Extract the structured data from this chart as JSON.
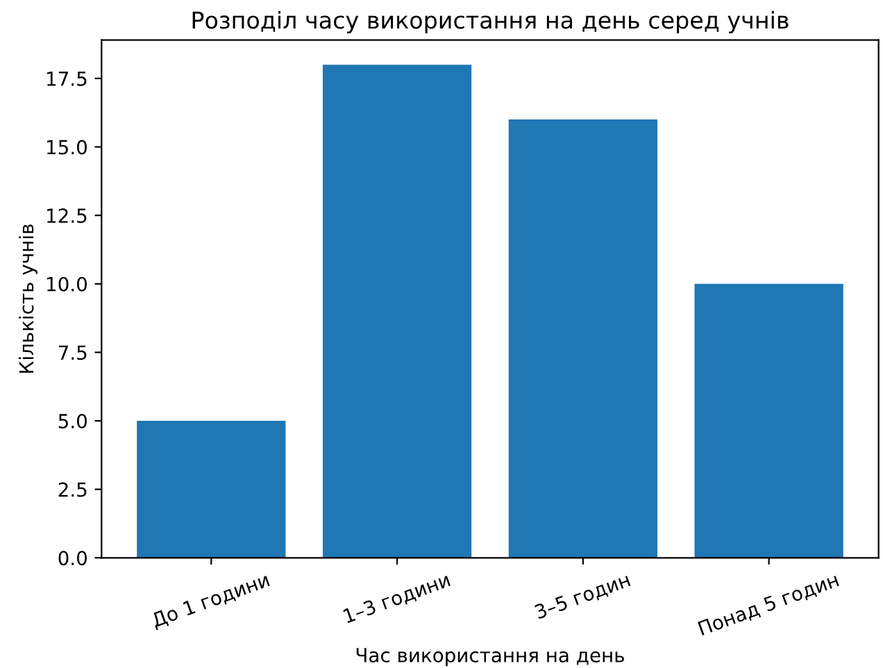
{
  "chart_data": {
    "type": "bar",
    "title": "Розподіл часу використання на день серед учнів",
    "xlabel": "Час використання на день",
    "ylabel": "Кількість учнів",
    "categories": [
      "До 1 години",
      "1–3 години",
      "3–5 годин",
      "Понад 5 годин"
    ],
    "values": [
      5,
      18,
      16,
      10
    ],
    "color": "#1f77b4",
    "ylim": [
      0,
      18.9
    ],
    "yticks": [
      {
        "value": 0,
        "label": "0.0"
      },
      2.5,
      {
        "value": 5,
        "label": "5.0"
      },
      7.5,
      {
        "value": 10,
        "label": "10.0"
      },
      12.5,
      {
        "value": 15,
        "label": "15.0"
      },
      17.5
    ],
    "grid": false,
    "legend": false
  }
}
